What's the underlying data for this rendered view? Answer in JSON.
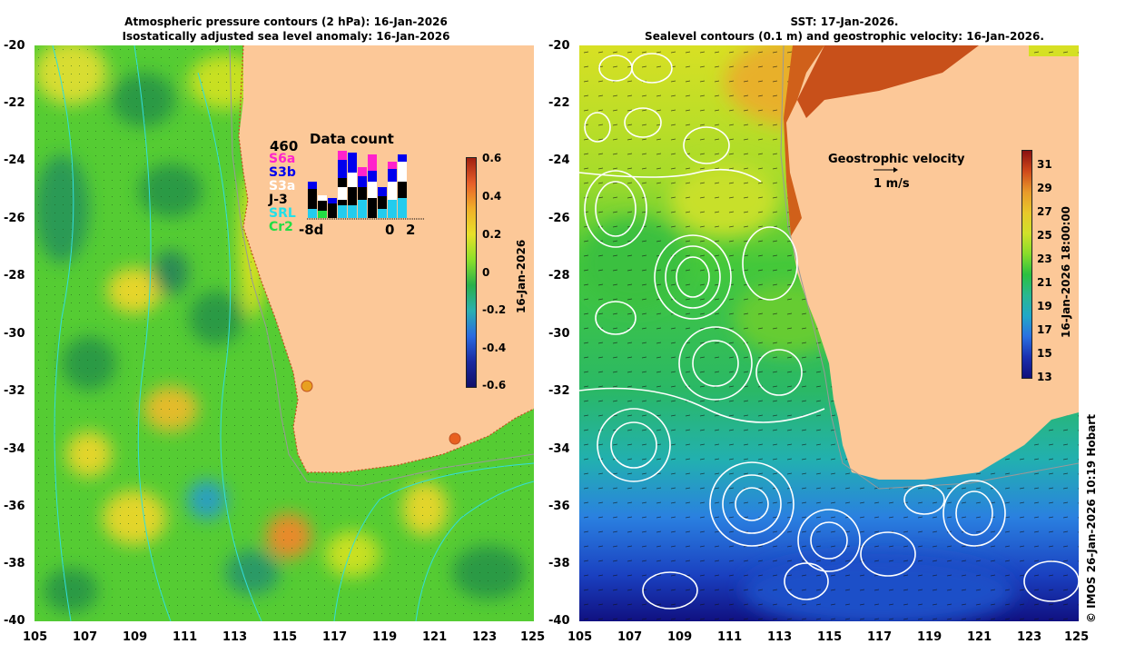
{
  "left_panel": {
    "title_line1": "Atmospheric pressure contours (2 hPa): 16-Jan-2026",
    "title_line2": "Isostatically adjusted sea level anomaly: 16-Jan-2026",
    "colorbar_ticks": [
      "0.6",
      "0.4",
      "0.2",
      "0",
      "-0.2",
      "-0.4",
      "-0.6"
    ],
    "colorbar_date": "16-Jan-2026",
    "data_count": {
      "title": "Data count",
      "max": "460",
      "missions": [
        {
          "name": "S6a",
          "color": "#ff22cc"
        },
        {
          "name": "S3b",
          "color": "#0000ee"
        },
        {
          "name": "S3a",
          "color": "#ffffff"
        },
        {
          "name": "J-3",
          "color": "#000000"
        },
        {
          "name": "SRL",
          "color": "#22e0e8"
        },
        {
          "name": "Cr2",
          "color": "#22dd44"
        }
      ],
      "x_labels": [
        "-8d",
        "0",
        "2"
      ]
    }
  },
  "right_panel": {
    "title_line1": "SST: 17-Jan-2026.",
    "title_line2": "Sealevel contours (0.1 m) and geostrophic velocity: 16-Jan-2026.",
    "legend_title": "Geostrophic velocity",
    "legend_scale": "1 m/s",
    "colorbar_ticks": [
      "31",
      "29",
      "27",
      "25",
      "23",
      "21",
      "19",
      "17",
      "15",
      "13"
    ],
    "colorbar_date": "16-Jan-2026 18:00:00"
  },
  "axes": {
    "lat_ticks": [
      "-20",
      "-22",
      "-24",
      "-26",
      "-28",
      "-30",
      "-32",
      "-34",
      "-36",
      "-38",
      "-40"
    ],
    "lon_ticks": [
      "105",
      "107",
      "109",
      "111",
      "113",
      "115",
      "117",
      "119",
      "121",
      "123",
      "125"
    ]
  },
  "credit": "© IMOS 26-Jan-2026 10:19 Hobart",
  "colors": {
    "land": "#fcc898",
    "ocean_green": "#3fc83f",
    "coast_outline": "#888888"
  }
}
